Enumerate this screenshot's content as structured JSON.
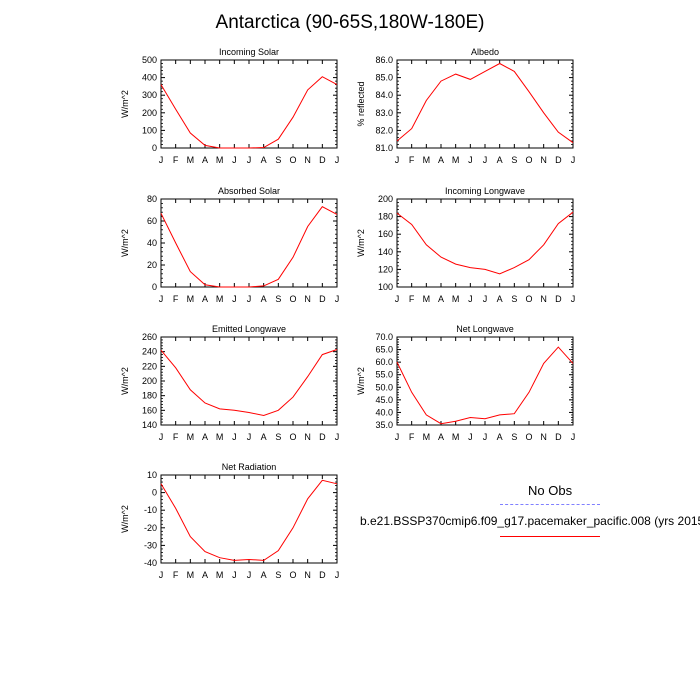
{
  "title": "Antarctica (90-65S,180W-180E)",
  "months": [
    "J",
    "F",
    "M",
    "A",
    "M",
    "J",
    "J",
    "A",
    "S",
    "O",
    "N",
    "D",
    "J"
  ],
  "colors": {
    "model_line": "#ff0000",
    "obs_line": "#8080ff",
    "axis": "#000000"
  },
  "legend": {
    "title": "No Obs",
    "series_label": "b.e21.BSSP370cmip6.f09_g17.pacemaker_pacific.008 (yrs 2015"
  },
  "chart_data": [
    {
      "type": "line",
      "title": "Incoming Solar",
      "ylabel": "W/m^2",
      "ylim": [
        0,
        500
      ],
      "yticks": [
        0,
        100,
        200,
        300,
        400,
        500
      ],
      "ytick_labels": [
        "0",
        "100",
        "200",
        "300",
        "400",
        "500"
      ],
      "series": [
        {
          "values": [
            360,
            220,
            85,
            15,
            0,
            0,
            0,
            3,
            50,
            175,
            330,
            405,
            360
          ]
        }
      ]
    },
    {
      "type": "line",
      "title": "Albedo",
      "ylabel": "% reflected",
      "ylim": [
        81.0,
        86.0
      ],
      "yticks": [
        81.0,
        82.0,
        83.0,
        84.0,
        85.0,
        86.0
      ],
      "ytick_labels": [
        "81.0",
        "82.0",
        "83.0",
        "84.0",
        "85.0",
        "86.0"
      ],
      "series": [
        {
          "values": [
            81.4,
            82.1,
            83.7,
            84.8,
            85.2,
            84.9,
            85.35,
            85.8,
            85.35,
            84.2,
            83.0,
            81.9,
            81.3
          ]
        }
      ]
    },
    {
      "type": "line",
      "title": "Absorbed Solar",
      "ylabel": "W/m^2",
      "ylim": [
        0,
        80
      ],
      "yticks": [
        0,
        20,
        40,
        60,
        80
      ],
      "ytick_labels": [
        "0",
        "20",
        "40",
        "60",
        "80"
      ],
      "series": [
        {
          "values": [
            67,
            40,
            14,
            2,
            0,
            0,
            0,
            1,
            7,
            27,
            55,
            73,
            66
          ]
        }
      ]
    },
    {
      "type": "line",
      "title": "Incoming Longwave",
      "ylabel": "W/m^2",
      "ylim": [
        100,
        200
      ],
      "yticks": [
        100,
        120,
        140,
        160,
        180,
        200
      ],
      "ytick_labels": [
        "100",
        "120",
        "140",
        "160",
        "180",
        "200"
      ],
      "series": [
        {
          "values": [
            184,
            171,
            148,
            134,
            126,
            122,
            120,
            115,
            122,
            131,
            148,
            172,
            185
          ]
        }
      ]
    },
    {
      "type": "line",
      "title": "Emitted Longwave",
      "ylabel": "W/m^2",
      "ylim": [
        140,
        260
      ],
      "yticks": [
        140,
        160,
        180,
        200,
        220,
        240,
        260
      ],
      "ytick_labels": [
        "140",
        "160",
        "180",
        "200",
        "220",
        "240",
        "260"
      ],
      "series": [
        {
          "values": [
            242,
            218,
            188,
            170,
            162,
            160,
            157,
            153,
            160,
            178,
            206,
            236,
            243
          ]
        }
      ]
    },
    {
      "type": "line",
      "title": "Net Longwave",
      "ylabel": "W/m^2",
      "ylim": [
        35.0,
        70.0
      ],
      "yticks": [
        35.0,
        40.0,
        45.0,
        50.0,
        55.0,
        60.0,
        65.0,
        70.0
      ],
      "ytick_labels": [
        "35.0",
        "40.0",
        "45.0",
        "50.0",
        "55.0",
        "60.0",
        "65.0",
        "70.0"
      ],
      "series": [
        {
          "values": [
            60.0,
            48.0,
            39.0,
            35.5,
            36.5,
            38.0,
            37.5,
            39.0,
            39.5,
            48.0,
            59.5,
            66.0,
            59.5
          ]
        }
      ]
    },
    {
      "type": "line",
      "title": "Net Radiation",
      "ylabel": "W/m^2",
      "ylim": [
        -40,
        10
      ],
      "yticks": [
        -40,
        -30,
        -20,
        -10,
        0,
        10
      ],
      "ytick_labels": [
        "-40",
        "-30",
        "-20",
        "-10",
        "0",
        "10"
      ],
      "series": [
        {
          "values": [
            5,
            -9,
            -25,
            -33.5,
            -37,
            -38.5,
            -38,
            -38.5,
            -33,
            -20,
            -3.5,
            7,
            5
          ]
        }
      ]
    }
  ]
}
